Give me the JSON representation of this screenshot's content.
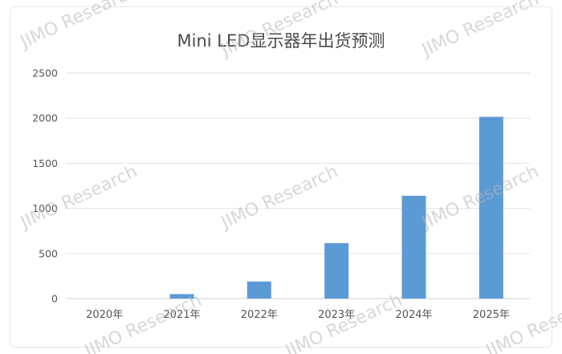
{
  "chart_data": {
    "type": "bar",
    "title": "Mini LED显示器年出货预测",
    "xlabel": "",
    "ylabel": "",
    "categories": [
      "2020年",
      "2021年",
      "2022年",
      "2023年",
      "2024年",
      "2025年"
    ],
    "values": [
      0,
      50,
      190,
      615,
      1140,
      2015
    ],
    "ylim": [
      0,
      2500
    ],
    "yticks": [
      0,
      500,
      1000,
      1500,
      2000,
      2500
    ],
    "grid": true,
    "legend": "none",
    "bar_color": "#5b9bd5"
  },
  "watermark": {
    "text": "JIMO Research"
  }
}
